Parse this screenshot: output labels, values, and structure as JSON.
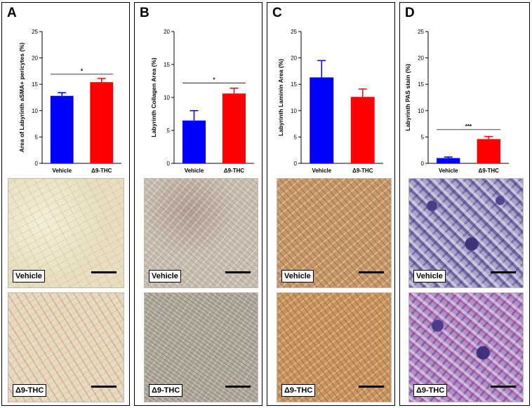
{
  "colors": {
    "vehicle": "#0000ff",
    "thc": "#ff0000"
  },
  "chart_data": [
    {
      "type": "bar",
      "panel": "A",
      "categories": [
        "Vehicle",
        "Δ9-THC"
      ],
      "values": [
        12.8,
        15.4
      ],
      "errors": [
        0.6,
        0.7
      ],
      "ylabel": "Area of Labyrinth aSMA+ pericytes (%)",
      "ylim": [
        0,
        25
      ],
      "yticks": [
        0,
        5,
        10,
        15,
        20,
        25
      ],
      "significance": "*",
      "sig_y": 16.9
    },
    {
      "type": "bar",
      "panel": "B",
      "categories": [
        "Vehicle",
        "Δ9-THC"
      ],
      "values": [
        6.5,
        10.6
      ],
      "errors": [
        1.5,
        0.8
      ],
      "ylabel": "Labyrinth Collagen Area (%)",
      "ylim": [
        0,
        20
      ],
      "yticks": [
        0,
        5,
        10,
        15,
        20
      ],
      "significance": "*",
      "sig_y": 12.2
    },
    {
      "type": "bar",
      "panel": "C",
      "categories": [
        "Vehicle",
        "Δ9-THC"
      ],
      "values": [
        16.3,
        12.6
      ],
      "errors": [
        3.2,
        1.5
      ],
      "ylabel": "Labyrinth Laminin Area (%)",
      "ylim": [
        0,
        25
      ],
      "yticks": [
        0,
        5,
        10,
        15,
        20,
        25
      ],
      "significance": "",
      "sig_y": null
    },
    {
      "type": "bar",
      "panel": "D",
      "categories": [
        "Vehicle",
        "Δ9-THC"
      ],
      "values": [
        1.0,
        4.6
      ],
      "errors": [
        0.2,
        0.5
      ],
      "ylabel": "Labyrinth PAS stain (%)",
      "ylim": [
        0,
        25
      ],
      "yticks": [
        0,
        5,
        10,
        15,
        20,
        25
      ],
      "significance": "***",
      "sig_y": 6.4
    }
  ],
  "panels": [
    {
      "letter": "A",
      "micro_top": "Vehicle",
      "micro_bottom": "Δ9-THC"
    },
    {
      "letter": "B",
      "micro_top": "Vehicle",
      "micro_bottom": "Δ9-THC"
    },
    {
      "letter": "C",
      "micro_top": "Vehicle",
      "micro_bottom": "Δ9-THC"
    },
    {
      "letter": "D",
      "micro_top": "Vehicle",
      "micro_bottom": "Δ9-THC"
    }
  ]
}
